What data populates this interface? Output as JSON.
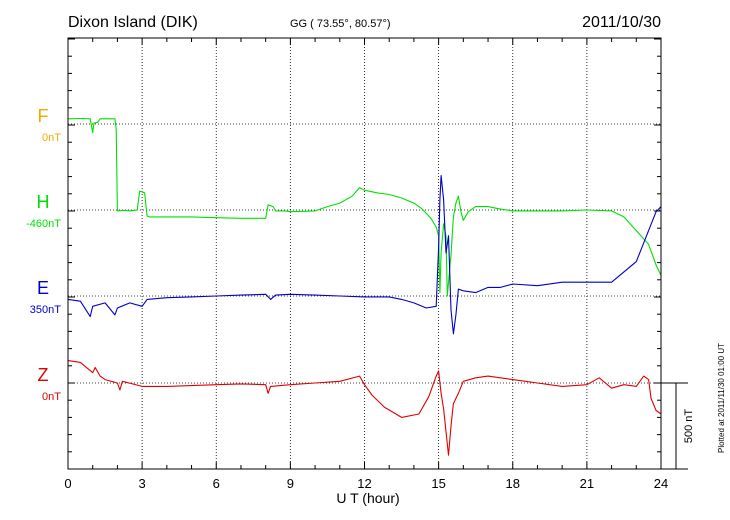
{
  "header": {
    "station": "Dixon Island (DIK)",
    "coords": "GG ( 73.55°,  80.57°)",
    "date": "2011/10/30"
  },
  "footer": {
    "plotted": "Plotted at 2011/11/30 01:00 UT"
  },
  "chart_data": {
    "type": "line",
    "xlabel": "U T (hour)",
    "xlim": [
      0,
      24
    ],
    "xticks": [
      "0",
      "3",
      "6",
      "9",
      "12",
      "15",
      "18",
      "21",
      "24"
    ],
    "scale_bar": {
      "label": "500 nT",
      "value_nT": 500
    },
    "colors": {
      "F": "#f5a800",
      "H": "#00e000",
      "E": "#0000c8",
      "Z": "#e00000"
    },
    "series": [
      {
        "name": "F",
        "baseline": "0nT",
        "points": []
      },
      {
        "name": "H",
        "baseline": "-460nT",
        "points": [
          [
            0,
            530
          ],
          [
            0.1,
            530
          ],
          [
            0.5,
            532
          ],
          [
            0.9,
            530
          ],
          [
            1.0,
            450
          ],
          [
            1.05,
            505
          ],
          [
            1.2,
            510
          ],
          [
            1.3,
            530
          ],
          [
            1.6,
            530
          ],
          [
            1.9,
            530
          ],
          [
            1.95,
            470
          ],
          [
            2.0,
            -5
          ],
          [
            2.3,
            -2
          ],
          [
            2.5,
            -5
          ],
          [
            2.8,
            0
          ],
          [
            2.9,
            110
          ],
          [
            3.1,
            100
          ],
          [
            3.2,
            -35
          ],
          [
            3.3,
            -40
          ],
          [
            4,
            -40
          ],
          [
            5,
            -40
          ],
          [
            6,
            -45
          ],
          [
            7,
            -48
          ],
          [
            8,
            -48
          ],
          [
            8.1,
            30
          ],
          [
            8.3,
            20
          ],
          [
            8.4,
            -5
          ],
          [
            8.8,
            -5
          ],
          [
            9,
            -10
          ],
          [
            10,
            -5
          ],
          [
            10.5,
            20
          ],
          [
            11,
            40
          ],
          [
            11.5,
            80
          ],
          [
            11.8,
            130
          ],
          [
            12,
            115
          ],
          [
            12.5,
            100
          ],
          [
            13,
            90
          ],
          [
            13.5,
            70
          ],
          [
            14,
            40
          ],
          [
            14.3,
            10
          ],
          [
            14.5,
            -20
          ],
          [
            14.7,
            -50
          ],
          [
            14.9,
            -100
          ],
          [
            15,
            -150
          ],
          [
            15.05,
            -480
          ],
          [
            15.1,
            -250
          ],
          [
            15.2,
            -80
          ],
          [
            15.3,
            -150
          ],
          [
            15.35,
            -500
          ],
          [
            15.5,
            -260
          ],
          [
            15.6,
            -40
          ],
          [
            15.7,
            40
          ],
          [
            15.8,
            80
          ],
          [
            15.9,
            -10
          ],
          [
            16,
            -60
          ],
          [
            16.2,
            -10
          ],
          [
            16.5,
            20
          ],
          [
            17,
            20
          ],
          [
            17.5,
            5
          ],
          [
            18,
            -5
          ],
          [
            19,
            -5
          ],
          [
            20,
            -5
          ],
          [
            21,
            0
          ],
          [
            22,
            -5
          ],
          [
            22.5,
            -40
          ],
          [
            23,
            -120
          ],
          [
            23.5,
            -200
          ],
          [
            23.8,
            -320
          ],
          [
            24,
            -380
          ]
        ]
      },
      {
        "name": "E",
        "baseline": "350nT",
        "points": [
          [
            0,
            -20
          ],
          [
            0.5,
            -30
          ],
          [
            0.9,
            -120
          ],
          [
            1.0,
            -60
          ],
          [
            1.5,
            -40
          ],
          [
            1.9,
            -110
          ],
          [
            2.0,
            -70
          ],
          [
            2.5,
            -40
          ],
          [
            3,
            -60
          ],
          [
            3.2,
            -20
          ],
          [
            4,
            -10
          ],
          [
            5,
            -5
          ],
          [
            6,
            0
          ],
          [
            7,
            5
          ],
          [
            8,
            10
          ],
          [
            8.2,
            -20
          ],
          [
            8.4,
            5
          ],
          [
            9,
            10
          ],
          [
            10,
            5
          ],
          [
            11,
            0
          ],
          [
            12,
            -5
          ],
          [
            13,
            -5
          ],
          [
            13.5,
            -20
          ],
          [
            14,
            -40
          ],
          [
            14.5,
            -70
          ],
          [
            14.9,
            -60
          ],
          [
            15,
            280
          ],
          [
            15.05,
            560
          ],
          [
            15.1,
            700
          ],
          [
            15.2,
            560
          ],
          [
            15.3,
            250
          ],
          [
            15.4,
            350
          ],
          [
            15.5,
            -80
          ],
          [
            15.6,
            -220
          ],
          [
            15.7,
            -110
          ],
          [
            15.8,
            40
          ],
          [
            16,
            30
          ],
          [
            16.5,
            20
          ],
          [
            17,
            50
          ],
          [
            17.5,
            50
          ],
          [
            18,
            70
          ],
          [
            19,
            60
          ],
          [
            20,
            80
          ],
          [
            21,
            80
          ],
          [
            22,
            80
          ],
          [
            22.5,
            140
          ],
          [
            23,
            200
          ],
          [
            23.5,
            380
          ],
          [
            23.8,
            490
          ],
          [
            24,
            520
          ]
        ]
      },
      {
        "name": "Z",
        "baseline": "0nT",
        "points": [
          [
            0,
            130
          ],
          [
            0.5,
            120
          ],
          [
            1.0,
            60
          ],
          [
            1.1,
            90
          ],
          [
            1.3,
            40
          ],
          [
            1.5,
            20
          ],
          [
            2,
            0
          ],
          [
            2.1,
            -40
          ],
          [
            2.2,
            10
          ],
          [
            3,
            -20
          ],
          [
            4,
            -20
          ],
          [
            5,
            -15
          ],
          [
            6,
            -10
          ],
          [
            7,
            -5
          ],
          [
            8,
            -10
          ],
          [
            8.1,
            -60
          ],
          [
            8.2,
            -20
          ],
          [
            9,
            -10
          ],
          [
            10,
            0
          ],
          [
            11,
            10
          ],
          [
            11.8,
            40
          ],
          [
            12,
            -10
          ],
          [
            12.3,
            -70
          ],
          [
            12.8,
            -140
          ],
          [
            13.5,
            -200
          ],
          [
            14.2,
            -180
          ],
          [
            14.6,
            -80
          ],
          [
            14.9,
            40
          ],
          [
            15.0,
            70
          ],
          [
            15.1,
            -60
          ],
          [
            15.2,
            -150
          ],
          [
            15.4,
            -420
          ],
          [
            15.5,
            -250
          ],
          [
            15.6,
            -120
          ],
          [
            15.8,
            -60
          ],
          [
            16,
            10
          ],
          [
            16.5,
            30
          ],
          [
            17,
            40
          ],
          [
            18,
            20
          ],
          [
            19,
            0
          ],
          [
            20,
            -20
          ],
          [
            21,
            -10
          ],
          [
            21.5,
            30
          ],
          [
            22,
            -30
          ],
          [
            22.5,
            -10
          ],
          [
            23,
            -20
          ],
          [
            23.3,
            40
          ],
          [
            23.5,
            20
          ],
          [
            23.6,
            -90
          ],
          [
            23.8,
            -160
          ],
          [
            24,
            -180
          ]
        ]
      }
    ]
  }
}
